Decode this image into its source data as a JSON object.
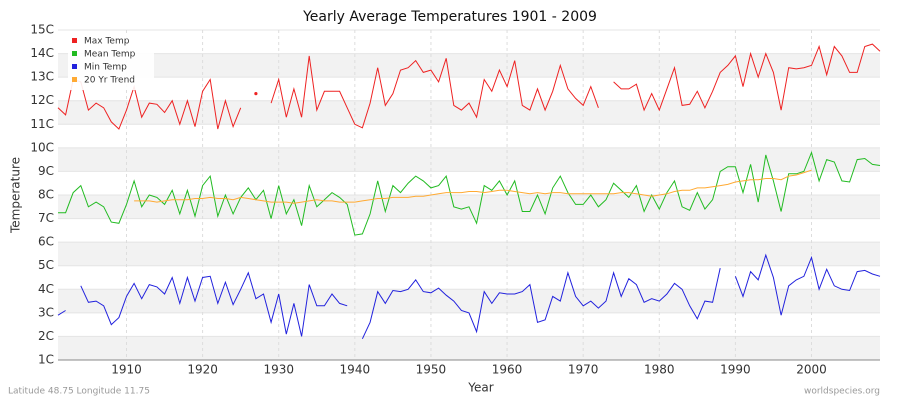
{
  "chart_data": {
    "type": "line",
    "title": "Yearly Average Temperatures 1901 - 2009",
    "x_label": "Year",
    "y_label": "Temperature",
    "footer_left": "Latitude 48.75 Longitude 11.75",
    "footer_right": "worldspecies.org",
    "legend": "upper left",
    "grid": true,
    "xlim": [
      1901,
      2009
    ],
    "xticks": [
      1910,
      1920,
      1930,
      1940,
      1950,
      1960,
      1970,
      1980,
      1990,
      2000
    ],
    "ylim": [
      1,
      15
    ],
    "yticks": [
      {
        "value": 1,
        "label": "1C"
      },
      {
        "value": 2,
        "label": "2C"
      },
      {
        "value": 3,
        "label": "3C"
      },
      {
        "value": 4,
        "label": "4C"
      },
      {
        "value": 5,
        "label": "5C"
      },
      {
        "value": 6,
        "label": "6C"
      },
      {
        "value": 7,
        "label": "7C"
      },
      {
        "value": 8,
        "label": "8C"
      },
      {
        "value": 9,
        "label": "9C"
      },
      {
        "value": 10,
        "label": "10C"
      },
      {
        "value": 11,
        "label": "11C"
      },
      {
        "value": 12,
        "label": "12C"
      },
      {
        "value": 13,
        "label": "13C"
      },
      {
        "value": 14,
        "label": "14C"
      },
      {
        "value": 15,
        "label": "15C"
      }
    ],
    "x": [
      1901,
      1902,
      1903,
      1904,
      1905,
      1906,
      1907,
      1908,
      1909,
      1910,
      1911,
      1912,
      1913,
      1914,
      1915,
      1916,
      1917,
      1918,
      1919,
      1920,
      1921,
      1922,
      1923,
      1924,
      1925,
      1926,
      1927,
      1928,
      1929,
      1930,
      1931,
      1932,
      1933,
      1934,
      1935,
      1936,
      1937,
      1938,
      1939,
      1940,
      1941,
      1942,
      1943,
      1944,
      1945,
      1946,
      1947,
      1948,
      1949,
      1950,
      1951,
      1952,
      1953,
      1954,
      1955,
      1956,
      1957,
      1958,
      1959,
      1960,
      1961,
      1962,
      1963,
      1964,
      1965,
      1966,
      1967,
      1968,
      1969,
      1970,
      1971,
      1972,
      1973,
      1974,
      1975,
      1976,
      1977,
      1978,
      1979,
      1980,
      1981,
      1982,
      1983,
      1984,
      1985,
      1986,
      1987,
      1988,
      1989,
      1990,
      1991,
      1992,
      1993,
      1994,
      1995,
      1996,
      1997,
      1998,
      1999,
      2000,
      2001,
      2002,
      2003,
      2004,
      2005,
      2006,
      2007,
      2008,
      2009
    ],
    "series": [
      {
        "name": "Max Temp",
        "color": "#ee2222",
        "values": [
          11.7,
          11.4,
          12.9,
          12.8,
          11.6,
          11.9,
          11.7,
          11.1,
          10.8,
          11.6,
          12.6,
          11.3,
          11.9,
          11.85,
          11.5,
          12.0,
          11.0,
          12.0,
          10.9,
          12.4,
          12.9,
          10.8,
          12.0,
          10.9,
          11.7,
          null,
          12.3,
          null,
          11.9,
          12.9,
          11.3,
          12.5,
          11.3,
          13.9,
          11.6,
          12.4,
          12.4,
          12.4,
          11.7,
          11.0,
          10.85,
          11.9,
          13.4,
          11.8,
          12.3,
          13.3,
          13.4,
          13.7,
          13.2,
          13.3,
          12.8,
          13.8,
          11.8,
          11.6,
          11.9,
          11.3,
          12.9,
          12.4,
          13.3,
          12.6,
          13.7,
          11.8,
          11.6,
          12.5,
          11.6,
          12.4,
          13.5,
          12.5,
          12.1,
          11.8,
          12.6,
          11.7,
          null,
          12.8,
          12.5,
          12.5,
          12.7,
          11.6,
          12.3,
          11.6,
          12.5,
          13.4,
          11.8,
          11.85,
          12.4,
          11.7,
          12.4,
          13.2,
          13.5,
          13.9,
          12.6,
          14.0,
          13.0,
          14.0,
          13.2,
          11.6,
          13.4,
          13.35,
          13.4,
          13.5,
          14.3,
          13.1,
          14.3,
          13.9,
          13.2,
          13.2,
          14.3,
          14.4,
          14.1
        ]
      },
      {
        "name": "Mean Temp",
        "color": "#22bb22",
        "values": [
          7.25,
          7.25,
          8.1,
          8.4,
          7.5,
          7.7,
          7.5,
          6.85,
          6.8,
          7.6,
          8.6,
          7.5,
          8.0,
          7.9,
          7.6,
          8.2,
          7.2,
          8.2,
          7.1,
          8.4,
          8.8,
          7.1,
          8.0,
          7.2,
          7.9,
          8.3,
          7.8,
          8.2,
          7.0,
          8.4,
          7.2,
          7.8,
          6.7,
          8.4,
          7.5,
          7.8,
          8.1,
          7.9,
          7.6,
          6.3,
          6.35,
          7.2,
          8.6,
          7.3,
          8.4,
          8.1,
          8.5,
          8.8,
          8.6,
          8.3,
          8.4,
          8.8,
          7.5,
          7.4,
          7.5,
          6.8,
          8.4,
          8.2,
          8.6,
          8.0,
          8.6,
          7.3,
          7.3,
          8.0,
          7.2,
          8.3,
          8.8,
          8.1,
          7.6,
          7.6,
          8.0,
          7.5,
          7.8,
          8.5,
          8.2,
          7.9,
          8.4,
          7.3,
          8.0,
          7.4,
          8.1,
          8.6,
          7.5,
          7.35,
          8.1,
          7.4,
          7.8,
          9.0,
          9.2,
          9.2,
          8.1,
          9.3,
          7.7,
          9.7,
          8.6,
          7.3,
          8.9,
          8.9,
          9.0,
          9.8,
          8.6,
          9.5,
          9.4,
          8.6,
          8.55,
          9.5,
          9.55,
          9.3,
          9.25
        ]
      },
      {
        "name": "Min Temp",
        "color": "#2222dd",
        "values": [
          2.9,
          3.1,
          null,
          4.15,
          3.45,
          3.5,
          3.3,
          2.5,
          2.8,
          3.7,
          4.25,
          3.6,
          4.2,
          4.1,
          3.8,
          4.5,
          3.4,
          4.5,
          3.5,
          4.5,
          4.55,
          3.4,
          4.3,
          3.35,
          4.0,
          4.7,
          3.6,
          3.8,
          2.6,
          3.8,
          2.1,
          3.4,
          2.0,
          4.2,
          3.3,
          3.3,
          3.8,
          3.4,
          3.3,
          null,
          1.9,
          2.6,
          3.9,
          3.4,
          3.95,
          3.9,
          4.0,
          4.4,
          3.9,
          3.85,
          4.05,
          3.75,
          3.5,
          3.1,
          3.0,
          2.2,
          3.9,
          3.4,
          3.85,
          3.8,
          3.8,
          3.9,
          4.2,
          2.6,
          2.7,
          3.7,
          3.5,
          4.7,
          3.7,
          3.3,
          3.5,
          3.2,
          3.5,
          4.7,
          3.7,
          4.45,
          4.2,
          3.45,
          3.6,
          3.5,
          3.8,
          4.25,
          4.0,
          3.3,
          2.75,
          3.5,
          3.45,
          4.9,
          null,
          4.55,
          3.7,
          4.75,
          4.4,
          5.45,
          4.5,
          2.9,
          4.15,
          4.4,
          4.55,
          5.35,
          4.0,
          4.85,
          4.15,
          4.0,
          3.95,
          4.75,
          4.8,
          4.65,
          4.55
        ]
      },
      {
        "name": "20 Yr Trend",
        "color": "#ffaa33",
        "values": [
          null,
          null,
          null,
          null,
          null,
          null,
          null,
          null,
          null,
          null,
          7.75,
          7.75,
          7.75,
          7.7,
          7.75,
          7.8,
          7.8,
          7.8,
          7.85,
          7.85,
          7.9,
          7.85,
          7.85,
          7.8,
          7.9,
          7.85,
          7.8,
          7.75,
          7.7,
          7.7,
          7.7,
          7.65,
          7.7,
          7.75,
          7.8,
          7.75,
          7.75,
          7.7,
          7.7,
          7.7,
          7.75,
          7.8,
          7.85,
          7.85,
          7.9,
          7.9,
          7.9,
          7.95,
          7.95,
          8.0,
          8.05,
          8.1,
          8.1,
          8.1,
          8.15,
          8.15,
          8.1,
          8.15,
          8.2,
          8.2,
          8.15,
          8.1,
          8.05,
          8.1,
          8.05,
          8.1,
          8.1,
          8.05,
          8.05,
          8.05,
          8.05,
          8.05,
          8.05,
          8.05,
          8.1,
          8.1,
          8.05,
          8.0,
          7.95,
          8.0,
          8.05,
          8.15,
          8.2,
          8.2,
          8.3,
          8.3,
          8.35,
          8.4,
          8.45,
          8.55,
          8.6,
          8.65,
          8.65,
          8.7,
          8.7,
          8.65,
          8.8,
          8.85,
          8.95,
          9.05,
          null,
          null,
          null,
          null,
          null,
          null,
          null,
          null,
          null
        ]
      }
    ]
  }
}
